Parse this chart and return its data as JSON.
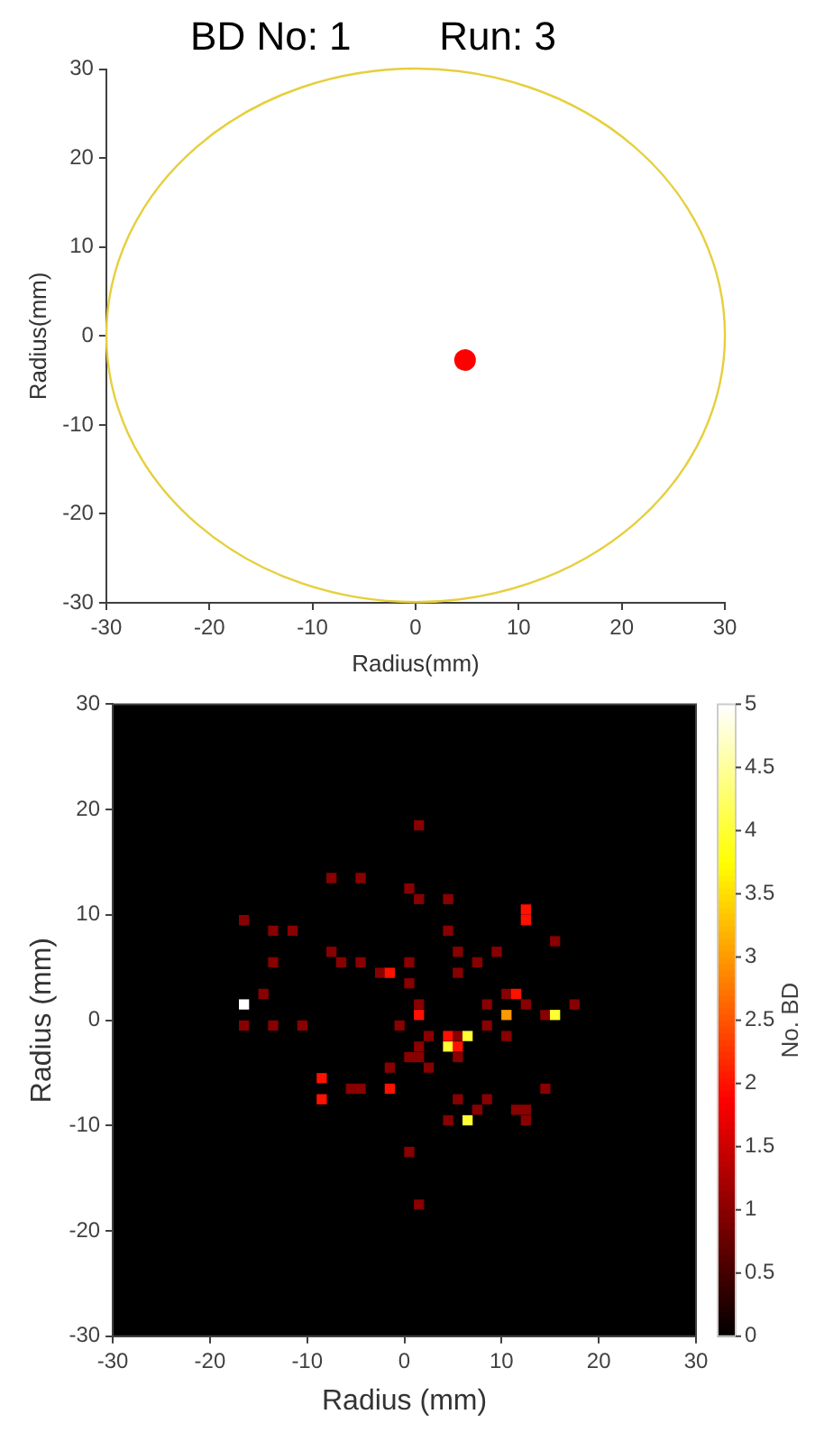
{
  "chart_data": [
    {
      "type": "scatter",
      "title": "BD No: 1        Run: 3",
      "xlabel": "Radius(mm)",
      "ylabel": "Radius(mm)",
      "xlim": [
        -30,
        30
      ],
      "ylim": [
        -30,
        30
      ],
      "xticks": [
        -30,
        -20,
        -10,
        0,
        10,
        20,
        30
      ],
      "yticks": [
        -30,
        -20,
        -10,
        0,
        10,
        20,
        30
      ],
      "grid": false,
      "legend": false,
      "series": [
        {
          "type": "scatter",
          "color": "#ff0000",
          "marker": "circle",
          "x": [
            4.8
          ],
          "values": [
            -2.7
          ]
        }
      ]
    },
    {
      "type": "scatter",
      "xlabel": "Radius (mm)",
      "ylabel": "Radius (mm)",
      "clabel": "No. BD",
      "xlim": [
        -30,
        30
      ],
      "ylim": [
        -30,
        30
      ],
      "xticks": [
        -30,
        -20,
        -10,
        0,
        10,
        20,
        30
      ],
      "yticks": [
        -30,
        -20,
        -10,
        0,
        10,
        20,
        30
      ],
      "clim": [
        0,
        5
      ],
      "cticks": [
        0,
        0.5,
        1,
        1.5,
        2,
        2.5,
        3,
        3.5,
        4,
        4.5,
        5
      ],
      "grid": false,
      "legend": false,
      "marker": "square",
      "x": [
        1.5,
        -7.5,
        -4.5,
        0.5,
        1.5,
        -16.5,
        -13.5,
        -11.5,
        -7.5,
        -13.5,
        -6.5,
        -4.5,
        0.5,
        -2.5,
        -1.5,
        0.5,
        -14.5,
        -16.5,
        1.5,
        1.5,
        -16.5,
        -13.5,
        -10.5,
        -0.5,
        1.5,
        0.5,
        1.5,
        -1.5,
        -8.5,
        -8.5,
        -5.5,
        -4.5,
        -1.5,
        0.5,
        4.5,
        12.5,
        12.5,
        4.5,
        15.5,
        5.5,
        9.5,
        7.5,
        5.5,
        10.5,
        11.5,
        8.5,
        12.5,
        17.5,
        10.5,
        14.5,
        15.5,
        8.5,
        2.5,
        4.5,
        5.5,
        6.5,
        10.5,
        4.5,
        5.5,
        5.5,
        2.5,
        14.5,
        5.5,
        8.5,
        4.5,
        6.5,
        7.5,
        11.5,
        12.5,
        12.5,
        1.5
      ],
      "values": [
        18.5,
        13.5,
        13.5,
        12.5,
        11.5,
        9.5,
        8.5,
        8.5,
        6.5,
        5.5,
        5.5,
        5.5,
        5.5,
        4.5,
        4.5,
        3.5,
        2.5,
        1.5,
        1.5,
        0.5,
        -0.5,
        -0.5,
        -0.5,
        -0.5,
        -2.5,
        -3.5,
        -3.5,
        -4.5,
        -5.5,
        -7.5,
        -6.5,
        -6.5,
        -6.5,
        -12.5,
        11.5,
        10.5,
        9.5,
        8.5,
        7.5,
        6.5,
        6.5,
        5.5,
        4.5,
        2.5,
        2.5,
        1.5,
        1.5,
        1.5,
        0.5,
        0.5,
        0.5,
        -0.5,
        -1.5,
        -1.5,
        -1.5,
        -1.5,
        -1.5,
        -2.5,
        -2.5,
        -3.5,
        -4.5,
        -6.5,
        -7.5,
        -7.5,
        -9.5,
        -9.5,
        -8.5,
        -8.5,
        -8.5,
        -9.5,
        -17.5
      ],
      "cvalues": [
        1,
        1,
        1,
        1,
        1,
        1,
        1,
        1,
        1,
        1,
        1,
        1,
        1,
        1,
        2,
        1,
        1,
        5,
        1,
        2,
        1,
        1,
        1,
        1,
        1,
        1,
        1,
        1,
        2,
        2,
        1,
        1,
        2,
        1,
        1,
        2,
        2,
        1,
        1,
        1,
        1,
        1,
        1,
        1,
        2,
        1,
        1,
        1,
        3,
        1,
        4,
        1,
        1,
        2,
        1,
        4,
        1,
        4,
        2,
        1,
        1,
        1,
        1,
        1,
        1,
        4,
        1,
        1,
        1,
        1,
        1
      ]
    }
  ]
}
